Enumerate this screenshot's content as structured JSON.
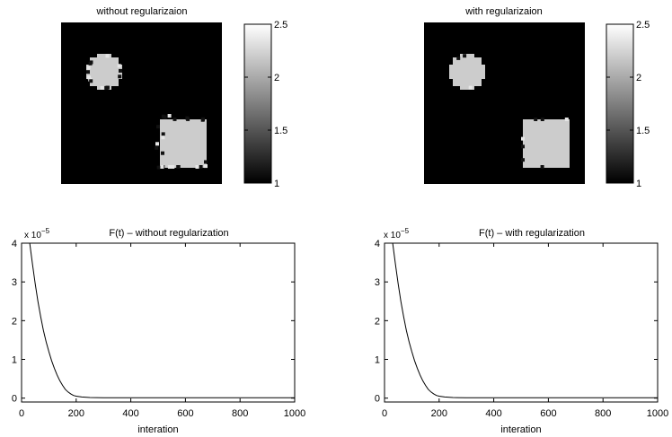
{
  "figure": {
    "panels": [
      {
        "title": "without regularizaion"
      },
      {
        "title": "with regularizaion"
      }
    ],
    "plots": [
      {
        "title": "F(t) – without regularization",
        "xlabel": "interation",
        "exponent_prefix": "x 10",
        "exponent": "−5"
      },
      {
        "title": "F(t) – with regularization",
        "xlabel": "interation",
        "exponent_prefix": "x 10",
        "exponent": "−5"
      }
    ]
  },
  "chart_data": [
    {
      "type": "heatmap",
      "title": "without regularizaion",
      "colormap": "gray",
      "clim": [
        1,
        2.5
      ],
      "colorbar_ticks": [
        "1",
        "1.5",
        "2",
        "2.5"
      ],
      "background_value": 1,
      "regions": [
        {
          "shape": "disk",
          "value": 2.2,
          "boundary": "noisy"
        },
        {
          "shape": "square",
          "value": 2.2,
          "boundary": "noisy"
        }
      ]
    },
    {
      "type": "heatmap",
      "title": "with regularizaion",
      "colormap": "gray",
      "clim": [
        1,
        2.5
      ],
      "colorbar_ticks": [
        "1",
        "1.5",
        "2",
        "2.5"
      ],
      "background_value": 1,
      "regions": [
        {
          "shape": "disk",
          "value": 2.2,
          "boundary": "smooth"
        },
        {
          "shape": "square",
          "value": 2.2,
          "boundary": "smooth"
        }
      ]
    },
    {
      "type": "line",
      "title": "F(t) – without regularization",
      "xlabel": "interation",
      "ylabel": "",
      "xlim": [
        0,
        1000
      ],
      "ylim": [
        -0.1,
        4
      ],
      "y_scale_factor": "x 10^-5",
      "xticks": [
        "0",
        "200",
        "400",
        "600",
        "800",
        "1000"
      ],
      "yticks": [
        "0",
        "1",
        "2",
        "3",
        "4"
      ],
      "series": [
        {
          "x": [
            30,
            40,
            50,
            60,
            70,
            80,
            90,
            100,
            110,
            120,
            130,
            140,
            150,
            160,
            170,
            180,
            190,
            200,
            220,
            250,
            300,
            400,
            500,
            600,
            700,
            800,
            900,
            1000
          ],
          "y": [
            4.0,
            3.45,
            2.95,
            2.5,
            2.1,
            1.75,
            1.45,
            1.2,
            0.97,
            0.77,
            0.6,
            0.45,
            0.33,
            0.23,
            0.16,
            0.11,
            0.07,
            0.05,
            0.03,
            0.015,
            0.01,
            0.01,
            0.01,
            0.01,
            0.01,
            0.01,
            0.01,
            0.01
          ]
        }
      ]
    },
    {
      "type": "line",
      "title": "F(t) – with regularization",
      "xlabel": "interation",
      "ylabel": "",
      "xlim": [
        0,
        1000
      ],
      "ylim": [
        -0.1,
        4
      ],
      "y_scale_factor": "x 10^-5",
      "xticks": [
        "0",
        "200",
        "400",
        "600",
        "800",
        "1000"
      ],
      "yticks": [
        "0",
        "1",
        "2",
        "3",
        "4"
      ],
      "series": [
        {
          "x": [
            30,
            40,
            50,
            60,
            70,
            80,
            90,
            100,
            110,
            120,
            130,
            140,
            150,
            160,
            170,
            180,
            190,
            200,
            220,
            250,
            300,
            400,
            500,
            600,
            700,
            800,
            900,
            1000
          ],
          "y": [
            4.0,
            3.45,
            2.95,
            2.5,
            2.1,
            1.75,
            1.45,
            1.2,
            0.97,
            0.77,
            0.6,
            0.45,
            0.33,
            0.23,
            0.16,
            0.11,
            0.07,
            0.05,
            0.03,
            0.015,
            0.01,
            0.01,
            0.01,
            0.01,
            0.01,
            0.01,
            0.01,
            0.01
          ]
        }
      ]
    }
  ]
}
